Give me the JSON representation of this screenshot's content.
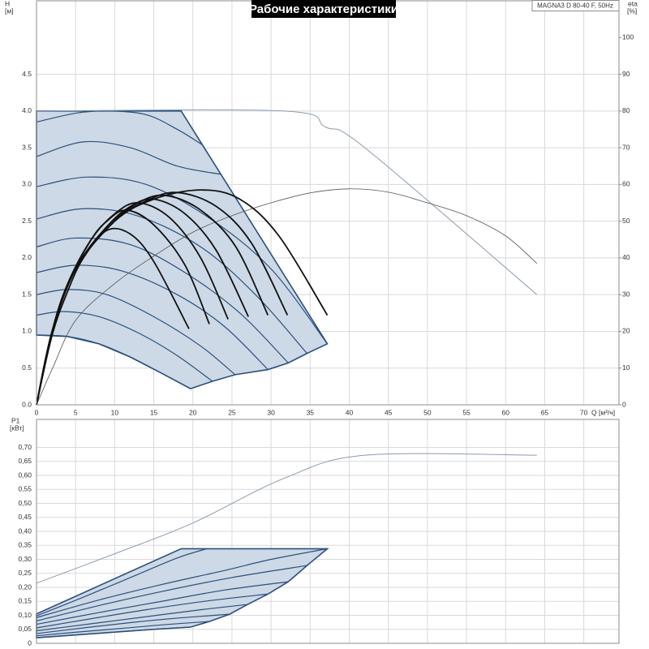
{
  "chart_data": [
    {
      "type": "line",
      "title": "Рабочие характеристики",
      "model": "MAGNA3 D 80-40 F, 50Hz",
      "ylabel": "H",
      "yunit": "[м]",
      "y2label": "eta",
      "y2unit": "[%]",
      "xlabel": "Q [м³/ч]",
      "xlim": [
        0,
        74.5
      ],
      "ylim": [
        0,
        5.5
      ],
      "y2lim": [
        0,
        110
      ],
      "xticks": [
        0,
        5,
        10,
        15,
        20,
        25,
        30,
        35,
        40,
        45,
        50,
        55,
        60,
        65,
        70
      ],
      "yticks": [
        {
          "value": 0,
          "label": "0.0"
        },
        0.5,
        {
          "value": 1,
          "label": "1.0"
        },
        1.5,
        {
          "value": 2,
          "label": "2.0"
        },
        2.5,
        {
          "value": 3,
          "label": "3.0"
        },
        3.5,
        {
          "value": 4,
          "label": "4.0"
        },
        4.5
      ],
      "y2ticks": [
        0,
        10,
        20,
        30,
        40,
        50,
        60,
        70,
        80,
        90,
        100
      ],
      "grid": true,
      "areas": [
        {
          "color": "#cdd9e6",
          "stroke": "#2c4f7c",
          "x": [
            0,
            18.5,
            37.2,
            34.6,
            32.2,
            29.6,
            25.4,
            22.5,
            19.7,
            16,
            12,
            8,
            4,
            0
          ],
          "values": [
            4.0,
            4.0,
            0.83,
            0.7,
            0.57,
            0.48,
            0.41,
            0.32,
            0.22,
            0.43,
            0.65,
            0.83,
            0.93,
            0.95
          ]
        }
      ],
      "series": [
        {
          "color": "#2c4f7c",
          "width": 1.2,
          "x": [
            0,
            5,
            9,
            14,
            18,
            21.2
          ],
          "values": [
            3.85,
            3.97,
            4.0,
            3.95,
            3.75,
            3.54
          ]
        },
        {
          "color": "#2c4f7c",
          "width": 1.2,
          "x": [
            0,
            6,
            12,
            18,
            23.5
          ],
          "values": [
            3.38,
            3.58,
            3.5,
            3.25,
            3.14
          ]
        },
        {
          "color": "#2c4f7c",
          "width": 1.2,
          "x": [
            0,
            6.5,
            14,
            22,
            30,
            37.2
          ],
          "values": [
            2.97,
            3.1,
            3.0,
            2.55,
            1.85,
            0.83
          ]
        },
        {
          "color": "#2c4f7c",
          "width": 1.2,
          "x": [
            0,
            6,
            13,
            21,
            28,
            34.6
          ],
          "values": [
            2.53,
            2.67,
            2.57,
            2.15,
            1.5,
            0.7
          ]
        },
        {
          "color": "#2c4f7c",
          "width": 1.2,
          "x": [
            0,
            5,
            12,
            19,
            26,
            32.2
          ],
          "values": [
            2.15,
            2.27,
            2.18,
            1.8,
            1.25,
            0.57
          ]
        },
        {
          "color": "#2c4f7c",
          "width": 1.2,
          "x": [
            0,
            5,
            11,
            18,
            24,
            29.6
          ],
          "values": [
            1.8,
            1.9,
            1.82,
            1.5,
            1.07,
            0.48
          ]
        },
        {
          "color": "#2c4f7c",
          "width": 1.2,
          "x": [
            0,
            4,
            9,
            15,
            21,
            25.4
          ],
          "values": [
            1.5,
            1.57,
            1.5,
            1.2,
            0.8,
            0.41
          ]
        },
        {
          "color": "#2c4f7c",
          "width": 1.2,
          "x": [
            0,
            3.5,
            8,
            13,
            18,
            22.5
          ],
          "values": [
            1.22,
            1.27,
            1.2,
            0.98,
            0.67,
            0.32
          ]
        },
        {
          "color": "#2c4f7c",
          "width": 1.2,
          "x": [
            0,
            4,
            8,
            12,
            16,
            19.7
          ],
          "values": [
            0.95,
            0.93,
            0.83,
            0.65,
            0.43,
            0.22
          ]
        },
        {
          "color": "#8a9bb0",
          "width": 1,
          "x": [
            0,
            31.7,
            37,
            42,
            64
          ],
          "values": [
            4.0,
            4.0,
            3.78,
            3.5,
            1.5
          ]
        },
        {
          "color": "#555555",
          "width": 0.8,
          "axis": "y2",
          "x": [
            0,
            2,
            5,
            10,
            15,
            20,
            25,
            30,
            35,
            40,
            45,
            50,
            55,
            60,
            64
          ],
          "values": [
            0,
            9.7,
            23,
            33,
            40.5,
            47,
            51.5,
            55,
            57.7,
            58.8,
            57.9,
            55,
            51.5,
            46,
            38.5
          ]
        },
        {
          "color": "#111111",
          "width": 1.8,
          "axis": "y2",
          "x": [
            0,
            2,
            4,
            6,
            9,
            12,
            15,
            19.5
          ],
          "values": [
            0,
            19,
            31,
            40,
            47.5,
            46.5,
            39,
            20.7
          ]
        },
        {
          "color": "#111111",
          "width": 1.8,
          "axis": "y2",
          "x": [
            0,
            2,
            4,
            7,
            9,
            11.5,
            15,
            19,
            22.1
          ],
          "values": [
            0,
            20,
            33,
            45,
            50,
            53,
            49,
            38,
            22
          ]
        },
        {
          "color": "#111111",
          "width": 1.8,
          "axis": "y2",
          "x": [
            0,
            2,
            4,
            7,
            10,
            13,
            17,
            21,
            24.5
          ],
          "values": [
            0,
            20,
            33,
            45,
            52,
            55,
            51,
            40,
            23.3
          ]
        },
        {
          "color": "#111111",
          "width": 1.8,
          "axis": "y2",
          "x": [
            0,
            2,
            5,
            9,
            12,
            15,
            19,
            23,
            27.1
          ],
          "values": [
            0,
            20,
            37,
            48.5,
            54,
            56,
            52,
            42,
            24
          ]
        },
        {
          "color": "#111111",
          "width": 1.8,
          "axis": "y2",
          "x": [
            0,
            2,
            5,
            9,
            13,
            16.5,
            21,
            25.5,
            29.6
          ],
          "values": [
            0,
            20,
            37,
            48.5,
            55,
            57,
            53,
            43,
            24.4
          ]
        },
        {
          "color": "#111111",
          "width": 1.8,
          "axis": "y2",
          "x": [
            0,
            2,
            5,
            10,
            14,
            18,
            23,
            27.5,
            32.1
          ],
          "values": [
            0,
            20,
            37,
            50,
            55.5,
            57.8,
            54,
            44,
            24.4
          ]
        },
        {
          "color": "#111111",
          "width": 1.8,
          "axis": "y2",
          "x": [
            0,
            2,
            5,
            10,
            15,
            21,
            26,
            31,
            37.2
          ],
          "values": [
            0,
            20,
            37,
            50,
            56,
            58.5,
            56,
            46,
            24.4
          ]
        }
      ]
    },
    {
      "type": "line",
      "ylabel": "P1",
      "yunit": "[кВт]",
      "xlim": [
        0,
        74.5
      ],
      "ylim": [
        0,
        0.8
      ],
      "xticks": [
        0,
        5,
        10,
        15,
        20,
        25,
        30,
        35,
        40,
        45,
        50,
        55,
        60,
        65,
        70
      ],
      "yticks": [
        0,
        {
          "value": 0.05,
          "label": "0,05"
        },
        {
          "value": 0.1,
          "label": "0,10"
        },
        {
          "value": 0.15,
          "label": "0,15"
        },
        {
          "value": 0.2,
          "label": "0,20"
        },
        {
          "value": 0.25,
          "label": "0,25"
        },
        {
          "value": 0.3,
          "label": "0,30"
        },
        {
          "value": 0.35,
          "label": "0,35"
        },
        {
          "value": 0.4,
          "label": "0,40"
        },
        {
          "value": 0.45,
          "label": "0,45"
        },
        {
          "value": 0.5,
          "label": "0,50"
        },
        {
          "value": 0.55,
          "label": "0,55"
        },
        {
          "value": 0.6,
          "label": "0,60"
        },
        {
          "value": 0.65,
          "label": "0,65"
        },
        {
          "value": 0.7,
          "label": "0,70"
        }
      ],
      "grid": true,
      "areas": [
        {
          "color": "#cdd9e6",
          "stroke": "#2c4f7c",
          "x": [
            0,
            18.5,
            37.2,
            34.6,
            32.2,
            29.6,
            27,
            24.7,
            22.1,
            19.7,
            15,
            10,
            5,
            0
          ],
          "values": [
            0.105,
            0.338,
            0.338,
            0.278,
            0.22,
            0.176,
            0.139,
            0.104,
            0.078,
            0.058,
            0.05,
            0.04,
            0.03,
            0.02
          ]
        }
      ],
      "series": [
        {
          "color": "#2c4f7c",
          "width": 1.2,
          "x": [
            0,
            5,
            10,
            15,
            19.7
          ],
          "values": [
            0.02,
            0.03,
            0.04,
            0.05,
            0.058
          ]
        },
        {
          "color": "#2c4f7c",
          "width": 1.2,
          "x": [
            0,
            6,
            12,
            17,
            22.1
          ],
          "values": [
            0.027,
            0.042,
            0.056,
            0.068,
            0.078
          ]
        },
        {
          "color": "#2c4f7c",
          "width": 1.2,
          "x": [
            0,
            6,
            12,
            18,
            24.7
          ],
          "values": [
            0.035,
            0.055,
            0.074,
            0.09,
            0.104
          ]
        },
        {
          "color": "#2c4f7c",
          "width": 1.2,
          "x": [
            0,
            7,
            14,
            21,
            27
          ],
          "values": [
            0.045,
            0.07,
            0.095,
            0.12,
            0.139
          ]
        },
        {
          "color": "#2c4f7c",
          "width": 1.2,
          "x": [
            0,
            7,
            14,
            22,
            29.6
          ],
          "values": [
            0.055,
            0.088,
            0.12,
            0.152,
            0.176
          ]
        },
        {
          "color": "#2c4f7c",
          "width": 1.2,
          "x": [
            0,
            8,
            16,
            24,
            32.2
          ],
          "values": [
            0.068,
            0.11,
            0.15,
            0.19,
            0.22
          ]
        },
        {
          "color": "#2c4f7c",
          "width": 1.2,
          "x": [
            0,
            8,
            16,
            25,
            34.6
          ],
          "values": [
            0.08,
            0.135,
            0.185,
            0.235,
            0.278
          ]
        },
        {
          "color": "#2c4f7c",
          "width": 1.2,
          "x": [
            0,
            8,
            16,
            24,
            30,
            37.2
          ],
          "values": [
            0.092,
            0.155,
            0.21,
            0.26,
            0.3,
            0.338
          ]
        },
        {
          "color": "#2c4f7c",
          "width": 1.2,
          "x": [
            0,
            6,
            12,
            18,
            21.8
          ],
          "values": [
            0.098,
            0.165,
            0.235,
            0.305,
            0.338
          ]
        },
        {
          "color": "#8a9bb0",
          "width": 1,
          "x": [
            0,
            10,
            20,
            31.7,
            42,
            64
          ],
          "values": [
            0.215,
            0.32,
            0.43,
            0.59,
            0.672,
            0.672
          ]
        }
      ]
    }
  ]
}
